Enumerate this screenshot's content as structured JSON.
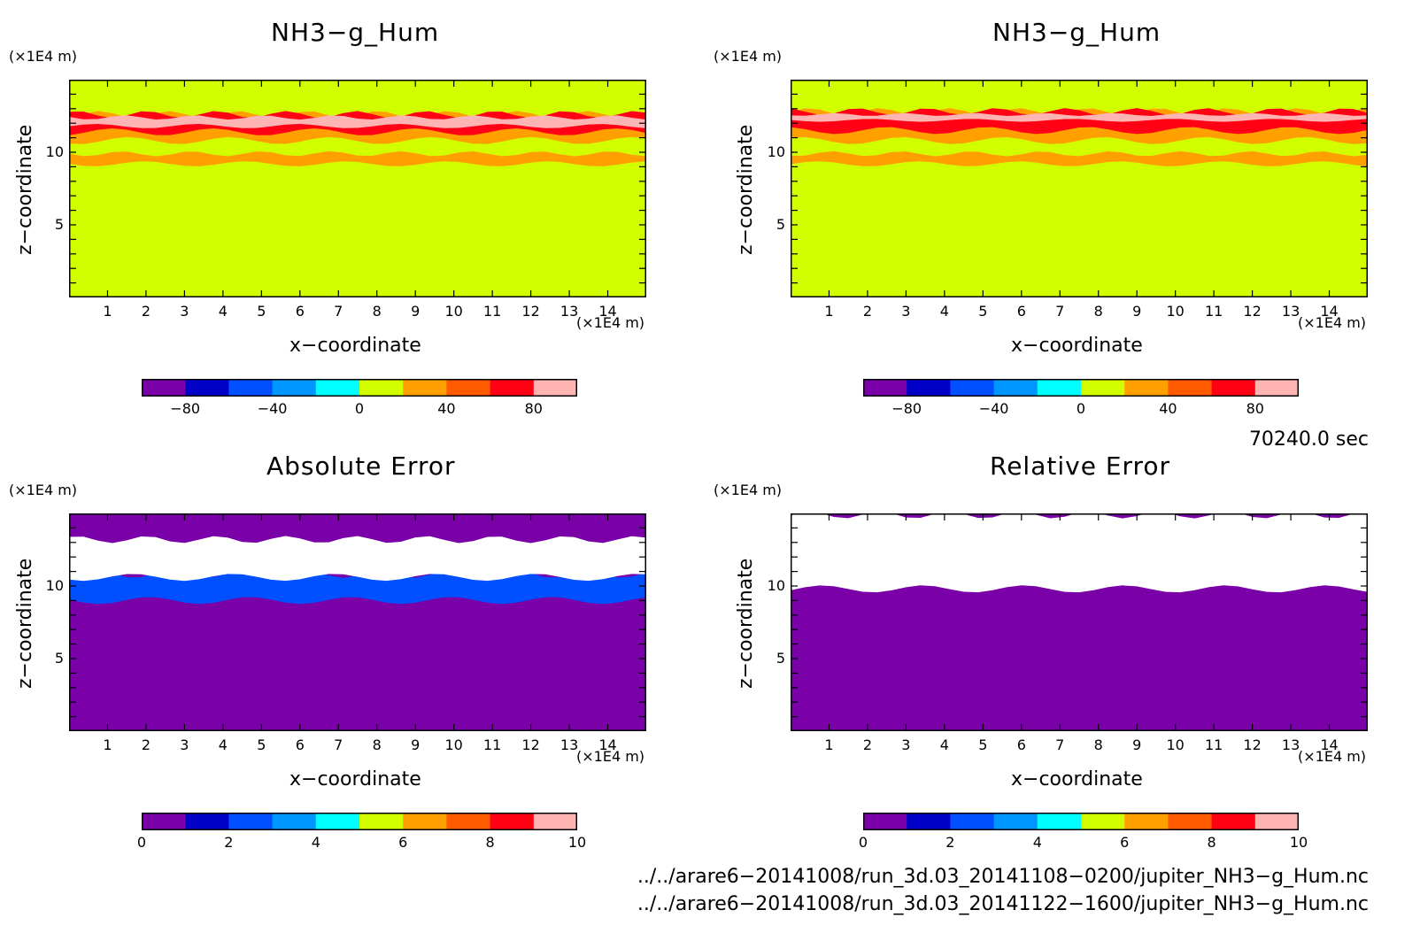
{
  "panels": [
    {
      "title": "NH3−g_Hum",
      "yunit": "(×1E4 m)",
      "xunit": "(×1E4 m)",
      "xlabel": "x−coordinate",
      "ylabel": "z−coordinate",
      "cb_ticks": [
        "−80",
        "−40",
        "0",
        "40",
        "80"
      ]
    },
    {
      "title": "NH3−g_Hum",
      "yunit": "(×1E4 m)",
      "xunit": "(×1E4 m)",
      "xlabel": "x−coordinate",
      "ylabel": "z−coordinate",
      "cb_ticks": [
        "−80",
        "−40",
        "0",
        "40",
        "80"
      ]
    },
    {
      "title": "Absolute Error",
      "yunit": "(×1E4 m)",
      "xunit": "(×1E4 m)",
      "xlabel": "x−coordinate",
      "ylabel": "z−coordinate",
      "cb_ticks": [
        "0",
        "2",
        "4",
        "6",
        "8",
        "10"
      ]
    },
    {
      "title": "Relative Error",
      "yunit": "(×1E4 m)",
      "xunit": "(×1E4 m)",
      "xlabel": "x−coordinate",
      "ylabel": "z−coordinate",
      "cb_ticks": [
        "0",
        "2",
        "4",
        "6",
        "8",
        "10"
      ]
    }
  ],
  "time_label": "70240.0 sec",
  "files": [
    "../../arare6−20141008/run_3d.03_20141108−0200/jupiter_NH3−g_Hum.nc",
    "../../arare6−20141008/run_3d.03_20141122−1600/jupiter_NH3−g_Hum.nc"
  ],
  "colors": {
    "levels": [
      "#7a00a8",
      "#0000c8",
      "#0050ff",
      "#0096ff",
      "#00ffff",
      "#d2ff00",
      "#ffa000",
      "#ff5a00",
      "#ff0014",
      "#ffb4b4"
    ],
    "background_field": "#d2ff00",
    "error_background": "#7a00a8",
    "saturated": "#ffffff"
  },
  "chart_data": [
    {
      "type": "heatmap",
      "title": "NH3−g_Hum",
      "xlabel": "x−coordinate",
      "ylabel": "z−coordinate",
      "xlim": [
        0,
        15
      ],
      "ylim": [
        0,
        15
      ],
      "xticks": [
        1,
        2,
        3,
        4,
        5,
        6,
        7,
        8,
        9,
        10,
        11,
        12,
        13,
        14
      ],
      "yticks": [
        5,
        10
      ],
      "colorbar_range": [
        -100,
        100
      ],
      "colorbar_ticks": [
        -80,
        -40,
        0,
        40,
        80
      ],
      "background_value": 10,
      "bands": [
        {
          "z_range": [
            9.2,
            9.9
          ],
          "value": 30
        },
        {
          "z_range": [
            10.8,
            12.6
          ],
          "value": 30
        },
        {
          "z_range": [
            11.4,
            12.6
          ],
          "value": 60
        },
        {
          "z_range": [
            11.8,
            12.4
          ],
          "value": 95
        }
      ]
    },
    {
      "type": "heatmap",
      "title": "NH3−g_Hum",
      "xlabel": "x−coordinate",
      "ylabel": "z−coordinate",
      "xlim": [
        0,
        15
      ],
      "ylim": [
        0,
        15
      ],
      "xticks": [
        1,
        2,
        3,
        4,
        5,
        6,
        7,
        8,
        9,
        10,
        11,
        12,
        13,
        14
      ],
      "yticks": [
        5,
        10
      ],
      "colorbar_range": [
        -100,
        100
      ],
      "colorbar_ticks": [
        -80,
        -40,
        0,
        40,
        80
      ],
      "background_value": 10,
      "bands": [
        {
          "z_range": [
            9.2,
            9.9
          ],
          "value": 30
        },
        {
          "z_range": [
            10.8,
            12.8
          ],
          "value": 30
        },
        {
          "z_range": [
            11.5,
            12.8
          ],
          "value": 60
        },
        {
          "z_range": [
            12.2,
            12.6
          ],
          "value": 95
        }
      ]
    },
    {
      "type": "heatmap",
      "title": "Absolute Error",
      "xlabel": "x−coordinate",
      "ylabel": "z−coordinate",
      "xlim": [
        0,
        15
      ],
      "ylim": [
        0,
        15
      ],
      "xticks": [
        1,
        2,
        3,
        4,
        5,
        6,
        7,
        8,
        9,
        10,
        11,
        12,
        13,
        14
      ],
      "yticks": [
        5,
        10
      ],
      "colorbar_range": [
        0,
        10
      ],
      "colorbar_ticks": [
        0,
        2,
        4,
        6,
        8,
        10
      ],
      "background_value": 0,
      "bands": [
        {
          "z_range": [
            9.0,
            10.8
          ],
          "value": 2
        },
        {
          "z_range": [
            10.6,
            13.2
          ],
          "value": 10
        }
      ]
    },
    {
      "type": "heatmap",
      "title": "Relative Error",
      "xlabel": "x−coordinate",
      "ylabel": "z−coordinate",
      "xlim": [
        0,
        15
      ],
      "ylim": [
        0,
        15
      ],
      "xticks": [
        1,
        2,
        3,
        4,
        5,
        6,
        7,
        8,
        9,
        10,
        11,
        12,
        13,
        14
      ],
      "yticks": [
        5,
        10
      ],
      "colorbar_range": [
        0,
        10
      ],
      "colorbar_ticks": [
        0,
        2,
        4,
        6,
        8,
        10
      ],
      "background_value": 0,
      "bands": [
        {
          "z_range": [
            9.8,
            14.9
          ],
          "value": 10
        }
      ]
    }
  ]
}
